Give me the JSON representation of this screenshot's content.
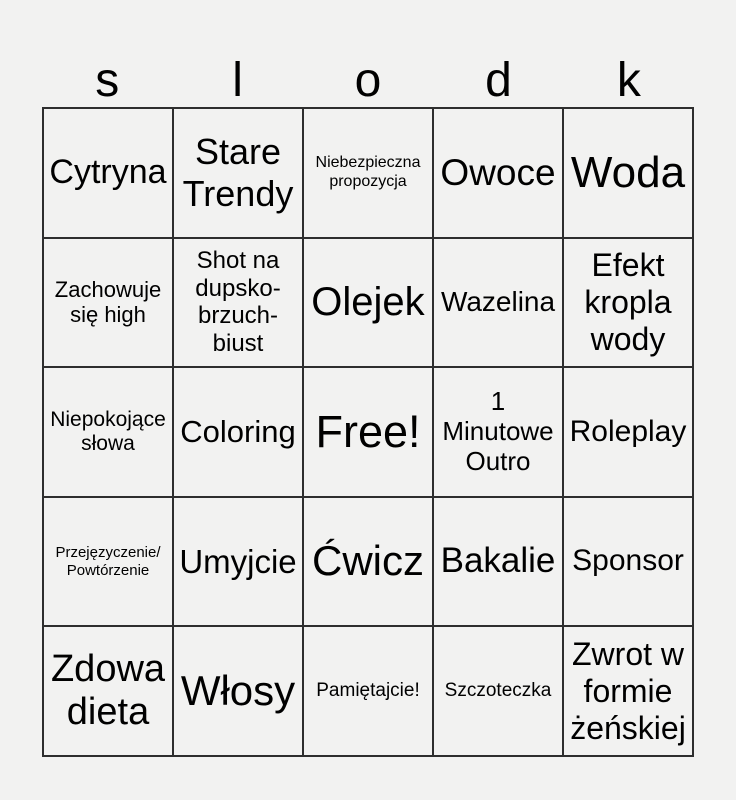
{
  "page": {
    "background_color": "#f2f2f1",
    "grid_line_color": "#2e2e2e",
    "text_color": "#000000"
  },
  "title": {
    "text": "slodk",
    "letters": [
      "s",
      "l",
      "o",
      "d",
      "k"
    ]
  },
  "grid": {
    "rows": 5,
    "cols": 5,
    "free_space_index": 12,
    "cells": [
      {
        "label": "Cytryna"
      },
      {
        "label": "Stare Trendy"
      },
      {
        "label": "Niebezpieczna propozycja"
      },
      {
        "label": "Owoce"
      },
      {
        "label": "Woda"
      },
      {
        "label": "Zachowuje się high"
      },
      {
        "label": "Shot na dupsko-brzuch-biust"
      },
      {
        "label": "Olejek"
      },
      {
        "label": "Wazelina"
      },
      {
        "label": "Efekt kropla wody"
      },
      {
        "label": "Niepokojące słowa"
      },
      {
        "label": "Coloring"
      },
      {
        "label": "Free!"
      },
      {
        "label": "1 Minutowe Outro"
      },
      {
        "label": "Roleplay"
      },
      {
        "label": "Przejęzyczenie/ Powtórzenie"
      },
      {
        "label": "Umyjcie"
      },
      {
        "label": "Ćwicz"
      },
      {
        "label": "Bakalie"
      },
      {
        "label": "Sponsor"
      },
      {
        "label": "Zdowa dieta"
      },
      {
        "label": "Włosy"
      },
      {
        "label": "Pamiętajcie!"
      },
      {
        "label": "Szczoteczka"
      },
      {
        "label": "Zwrot w formie żeńskiej"
      }
    ]
  }
}
